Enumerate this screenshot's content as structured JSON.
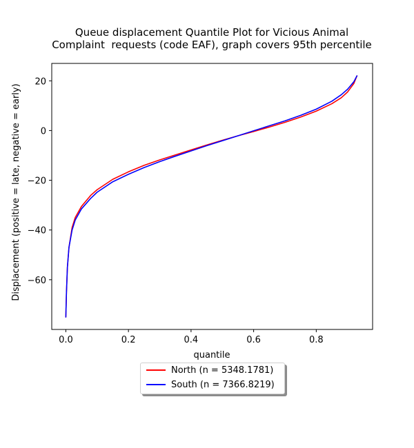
{
  "chart_data": {
    "type": "line",
    "title_lines": [
      "Queue displacement Quantile Plot for Vicious Animal",
      "Complaint  requests (code EAF), graph covers 95th percentile"
    ],
    "xlabel": "quantile",
    "ylabel": "Displacement (positive = late, negative = early)",
    "xlim": [
      -0.045,
      0.98
    ],
    "ylim": [
      -80,
      27
    ],
    "xticks": [
      0.0,
      0.2,
      0.4,
      0.6,
      0.8
    ],
    "xtick_labels": [
      "0.0",
      "0.2",
      "0.4",
      "0.6",
      "0.8"
    ],
    "yticks": [
      20,
      0,
      -20,
      -40,
      -60
    ],
    "ytick_labels": [
      "20",
      "0",
      "−20",
      "−40",
      "−60"
    ],
    "grid": false,
    "legend_position": "below",
    "series": [
      {
        "name": "North (n = 5348.1781)",
        "color": "#ff0000",
        "x": [
          0.0,
          0.002,
          0.005,
          0.01,
          0.02,
          0.03,
          0.05,
          0.08,
          0.1,
          0.15,
          0.2,
          0.25,
          0.3,
          0.35,
          0.4,
          0.45,
          0.5,
          0.55,
          0.6,
          0.65,
          0.7,
          0.75,
          0.8,
          0.85,
          0.88,
          0.9,
          0.92,
          0.93
        ],
        "y": [
          -75,
          -65,
          -55,
          -47,
          -39,
          -35,
          -30.5,
          -26.0,
          -23.8,
          -19.6,
          -16.6,
          -14.0,
          -11.8,
          -9.8,
          -7.8,
          -5.8,
          -3.9,
          -2.1,
          -0.4,
          1.4,
          3.3,
          5.4,
          7.8,
          10.8,
          13.2,
          15.5,
          18.9,
          22.0
        ]
      },
      {
        "name": "South (n = 7366.8219)",
        "color": "#0000ff",
        "x": [
          0.0,
          0.002,
          0.005,
          0.01,
          0.02,
          0.03,
          0.05,
          0.08,
          0.1,
          0.15,
          0.2,
          0.25,
          0.3,
          0.35,
          0.4,
          0.45,
          0.5,
          0.55,
          0.6,
          0.65,
          0.7,
          0.75,
          0.8,
          0.85,
          0.88,
          0.9,
          0.92,
          0.93
        ],
        "y": [
          -75,
          -65,
          -55,
          -47,
          -40,
          -36,
          -31.5,
          -27.2,
          -24.8,
          -20.6,
          -17.6,
          -14.9,
          -12.5,
          -10.3,
          -8.2,
          -6.1,
          -4.1,
          -2.1,
          -0.1,
          1.9,
          3.9,
          6.1,
          8.6,
          11.8,
          14.4,
          16.6,
          19.6,
          22.0
        ]
      }
    ]
  }
}
